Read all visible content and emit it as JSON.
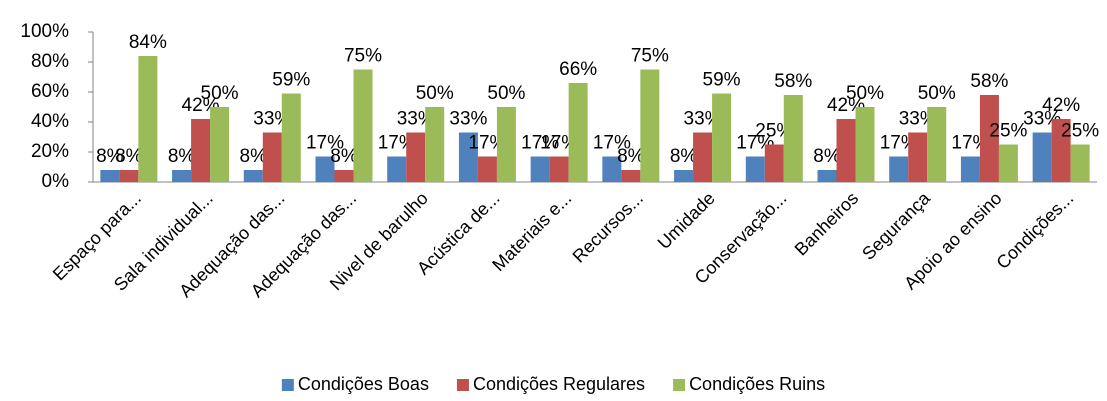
{
  "chart_data": {
    "type": "bar",
    "categories": [
      "Espaço para...",
      "Sala individual...",
      "Adequação das...",
      "Adequação das...",
      "Nivel de barulho",
      "Acústica de...",
      "Materiais e...",
      "Recursos...",
      "Umidade",
      "Conservação...",
      "Banheiros",
      "Segurança",
      "Apoio ao ensino",
      "Condições..."
    ],
    "series": [
      {
        "name": "Condições Boas",
        "color": "#4f81bd",
        "values": [
          8,
          8,
          8,
          17,
          17,
          33,
          17,
          17,
          8,
          17,
          8,
          17,
          17,
          33
        ],
        "value_labels": [
          "8%",
          "8%",
          "8%",
          "17%",
          "17%",
          "33%",
          "17%",
          "17%",
          "8%",
          "17%",
          "8%",
          "17%",
          "17%",
          "33%"
        ]
      },
      {
        "name": "Condições Regulares",
        "color": "#c0504d",
        "values": [
          8,
          42,
          33,
          8,
          33,
          17,
          17,
          8,
          33,
          25,
          42,
          33,
          58,
          42
        ],
        "value_labels": [
          "8%",
          "42%",
          "33%",
          "8%",
          "33%",
          "17%",
          "17%",
          "8%",
          "33%",
          "25%",
          "42%",
          "33%",
          "58%",
          "42%"
        ]
      },
      {
        "name": "Condições Ruins",
        "color": "#9bbb59",
        "values": [
          84,
          50,
          59,
          75,
          50,
          50,
          66,
          75,
          59,
          58,
          50,
          50,
          25,
          25
        ],
        "value_labels": [
          "84%",
          "50%",
          "59%",
          "75%",
          "50%",
          "50%",
          "66%",
          "75%",
          "59%",
          "58%",
          "50%",
          "50%",
          "25%",
          "25%"
        ]
      }
    ],
    "ylim": [
      0,
      100
    ],
    "yticks": [
      {
        "value": 0,
        "label": "0%"
      },
      {
        "value": 20,
        "label": "20%"
      },
      {
        "value": 40,
        "label": "40%"
      },
      {
        "value": 60,
        "label": "60%"
      },
      {
        "value": 80,
        "label": "80%"
      },
      {
        "value": 100,
        "label": "100%"
      }
    ],
    "legend": "bottom"
  }
}
